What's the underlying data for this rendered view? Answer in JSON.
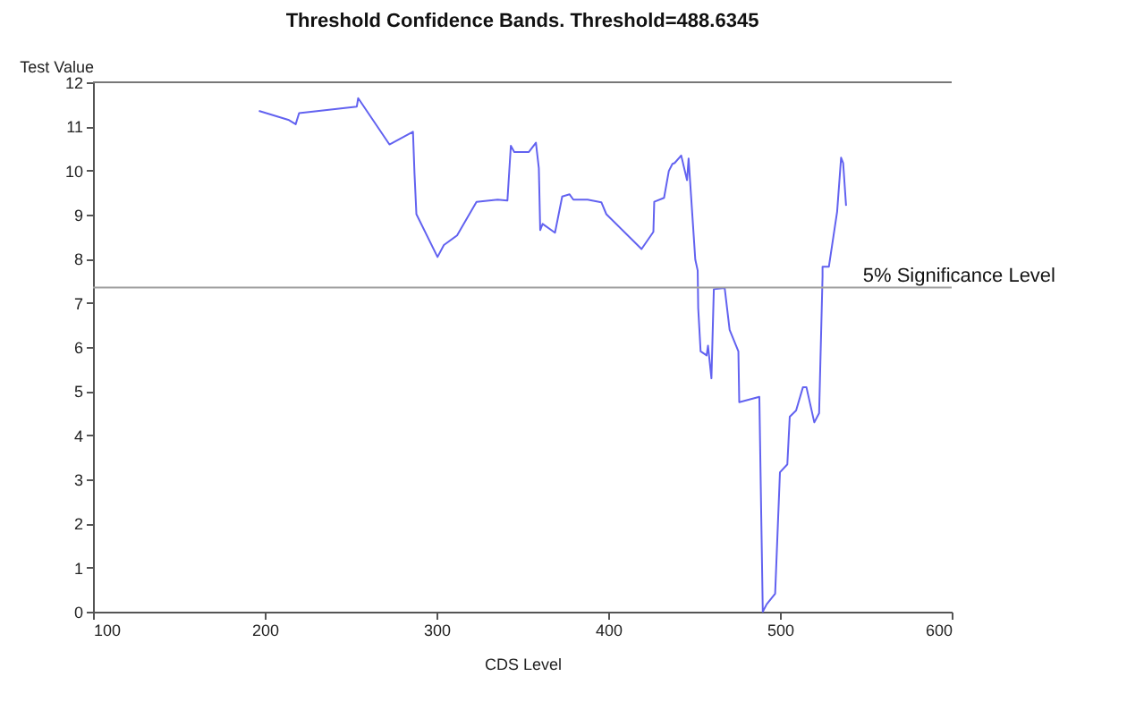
{
  "chart_data": {
    "type": "line",
    "title": "Threshold Confidence Bands. Threshold=488.6345",
    "xlabel": "CDS Level",
    "ylabel": "Test Value",
    "xlim": [
      100,
      600
    ],
    "xticks": [
      100,
      200,
      300,
      400,
      500,
      600
    ],
    "ylim": [
      0,
      12
    ],
    "yticks": [
      0,
      1,
      2,
      3,
      4,
      5,
      6,
      7,
      8,
      9,
      10,
      11,
      12
    ],
    "grid": false,
    "marker": "none",
    "line_style": "solid",
    "ref_lines": [
      {
        "axis": "y",
        "value": 7.35,
        "label": "5% Significance Level",
        "color": "#a0a0a0"
      }
    ],
    "series": [
      {
        "color": "#6262f0",
        "x": [
          196.6,
          213.7,
          218,
          220,
          253.6,
          254.4,
          272.6,
          286.3,
          287.2,
          288.3,
          300.6,
          304.3,
          312,
          323.3,
          335.6,
          341.3,
          343.3,
          345.3,
          353.8,
          357.9,
          359.6,
          360.4,
          361.8,
          369,
          373.2,
          377.5,
          379.7,
          388,
          396,
          398.9,
          419.4,
          426.3,
          426.8,
          432.5,
          435.3,
          437.4,
          438.7,
          442.5,
          445.9,
          446.8,
          450.7,
          452.1,
          452.4,
          453.8,
          457.3,
          458.1,
          460.1,
          461.5,
          467.8,
          470.7,
          475.8,
          476.3,
          488,
          488.6,
          490,
          492.3,
          497.2,
          500,
          504.3,
          505.7,
          509.4,
          513.4,
          515.4,
          520,
          522.8,
          524.8,
          524.8,
          528.5,
          533.3,
          535.6,
          536.8,
          538.5
        ],
        "values": [
          11.35,
          11.15,
          11.05,
          11.3,
          11.45,
          11.64,
          10.59,
          10.88,
          9.93,
          9.01,
          8.04,
          8.31,
          8.53,
          9.29,
          9.34,
          9.32,
          10.56,
          10.42,
          10.42,
          10.63,
          10.05,
          8.65,
          8.79,
          8.59,
          9.41,
          9.46,
          9.34,
          9.34,
          9.28,
          9.01,
          8.22,
          8.61,
          9.29,
          9.38,
          9.99,
          10.15,
          10.17,
          10.34,
          9.78,
          10.27,
          7.98,
          7.73,
          6.88,
          5.9,
          5.81,
          6.03,
          5.29,
          7.31,
          7.34,
          6.39,
          5.9,
          4.75,
          4.87,
          3.4,
          0,
          0.17,
          0.41,
          3.16,
          3.34,
          4.42,
          4.56,
          5.09,
          5.09,
          4.29,
          4.5,
          7.6,
          7.82,
          7.82,
          9.07,
          10.29,
          10.17,
          9.2
        ]
      }
    ]
  }
}
